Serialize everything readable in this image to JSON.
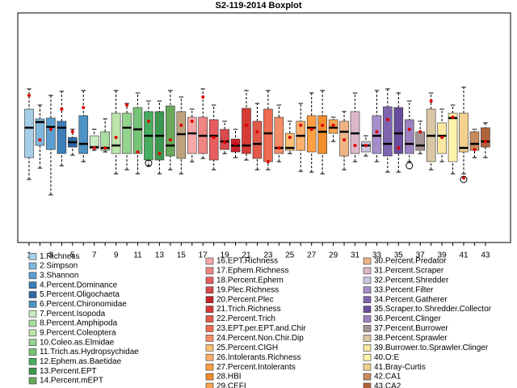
{
  "chart_data": {
    "type": "boxplot",
    "title": "S2-119-2014 Boxplot",
    "ylim": [
      0,
      284
    ],
    "categories": [
      "1",
      null,
      "3",
      null,
      "5",
      null,
      "7",
      null,
      "9",
      null,
      "11",
      null,
      "13",
      null,
      "15",
      null,
      "17",
      null,
      "19",
      null,
      "21",
      null,
      "23",
      null,
      "25",
      null,
      "27",
      null,
      "29",
      null,
      "31",
      null,
      "33",
      null,
      "35",
      null,
      "37",
      null,
      "39",
      null,
      "41",
      null,
      "43"
    ],
    "colors": [
      "#a6cde6",
      "#7fb7dc",
      "#5b9fd0",
      "#3c7fba",
      "#2f69a6",
      "#4d92c2",
      "#c9e9c1",
      "#a8dca0",
      "#bde4ab",
      "#93d38d",
      "#75c477",
      "#47ad5e",
      "#3b984f",
      "#6aa85a",
      "#bca37c",
      "#f5a8a8",
      "#f08484",
      "#e75d5e",
      "#d84a4c",
      "#c8232a",
      "#d53a35",
      "#e2594a",
      "#ef6d51",
      "#f58d66",
      "#fdc074",
      "#fdb06c",
      "#fd9f42",
      "#f08d2c",
      "#f8a352",
      "#efb486",
      "#dab8c8",
      "#cbc7e1",
      "#a58fcb",
      "#7f65b0",
      "#6a4d9c",
      "#9c82c0",
      "#a39393",
      "#d9c7a4",
      "#fbe7a1",
      "#fdf3ab",
      "#f2d08e",
      "#c98b5b",
      "#b1623b"
    ],
    "boxes": [
      {
        "low": 78,
        "q1": 105,
        "median": 142,
        "q3": 165,
        "high": 190,
        "mean": 182
      },
      {
        "low": 92,
        "q1": 120,
        "median": 149,
        "q3": 153,
        "high": 170,
        "mean": 127
      },
      {
        "low": 59,
        "q1": 115,
        "median": 143,
        "q3": 154,
        "high": 182,
        "mean": 140
      },
      {
        "low": 95,
        "q1": 110,
        "median": 142,
        "q3": 150,
        "high": 187,
        "mean": 165
      },
      {
        "low": 108,
        "q1": 118,
        "median": 124,
        "q3": 130,
        "high": 140,
        "mean": 137
      },
      {
        "low": 100,
        "q1": 110,
        "median": 122,
        "q3": 157,
        "high": 188,
        "mean": 167
      },
      {
        "low": 114,
        "q1": 116,
        "median": 118,
        "q3": 132,
        "high": 140,
        "mean": 117
      },
      {
        "low": 112,
        "q1": 114,
        "median": 117,
        "q3": 137,
        "high": 153,
        "mean": 117
      },
      {
        "low": 85,
        "q1": 110,
        "median": 120,
        "q3": 160,
        "high": 188,
        "mean": 130
      },
      {
        "low": 90,
        "q1": 110,
        "median": 142,
        "q3": 160,
        "high": 172,
        "mean": 170
      },
      {
        "low": 85,
        "q1": 110,
        "median": 140,
        "q3": 167,
        "high": 185,
        "mean": 112
      },
      {
        "low": 95,
        "q1": 102,
        "median": 132,
        "q3": 162,
        "high": 175,
        "mean": 150,
        "outliers": [
          98
        ]
      },
      {
        "low": 85,
        "q1": 102,
        "median": 132,
        "q3": 162,
        "high": 175,
        "mean": 110
      },
      {
        "low": 90,
        "q1": 107,
        "median": 120,
        "q3": 169,
        "high": 188,
        "mean": 127
      },
      {
        "low": 85,
        "q1": 104,
        "median": 134,
        "q3": 162,
        "high": 180,
        "mean": 145
      },
      {
        "low": 100,
        "q1": 110,
        "median": 135,
        "q3": 155,
        "high": 165,
        "mean": 150
      },
      {
        "low": 104,
        "q1": 110,
        "median": 132,
        "q3": 155,
        "high": 190,
        "mean": 180
      },
      {
        "low": 90,
        "q1": 102,
        "median": 132,
        "q3": 152,
        "high": 170,
        "mean": 130
      },
      {
        "low": 110,
        "q1": 115,
        "median": 125,
        "q3": 140,
        "high": 150,
        "mean": 124
      },
      {
        "low": 105,
        "q1": 112,
        "median": 120,
        "q3": 128,
        "high": 140,
        "mean": 122
      },
      {
        "low": 102,
        "q1": 110,
        "median": 120,
        "q3": 166,
        "high": 188,
        "mean": 145
      },
      {
        "low": 90,
        "q1": 104,
        "median": 122,
        "q3": 150,
        "high": 172,
        "mean": 137
      },
      {
        "low": 90,
        "q1": 100,
        "median": 135,
        "q3": 165,
        "high": 188,
        "mean": 100
      },
      {
        "low": 100,
        "q1": 110,
        "median": 117,
        "q3": 155,
        "high": 170,
        "mean": 117
      },
      {
        "low": 110,
        "q1": 114,
        "median": 117,
        "q3": 135,
        "high": 150,
        "mean": 130
      },
      {
        "low": 88,
        "q1": 114,
        "median": 132,
        "q3": 150,
        "high": 172,
        "mean": 145
      },
      {
        "low": 87,
        "q1": 112,
        "median": 142,
        "q3": 157,
        "high": 185,
        "mean": 140
      },
      {
        "low": 85,
        "q1": 110,
        "median": 137,
        "q3": 157,
        "high": 188,
        "mean": 145
      },
      {
        "low": 125,
        "q1": 135,
        "median": 142,
        "q3": 152,
        "high": 155,
        "mean": 145
      },
      {
        "low": 90,
        "q1": 107,
        "median": 137,
        "q3": 150,
        "high": 162,
        "mean": 127
      },
      {
        "low": 100,
        "q1": 110,
        "median": 135,
        "q3": 162,
        "high": 185,
        "mean": 120
      },
      {
        "low": 107,
        "q1": 112,
        "median": 120,
        "q3": 125,
        "high": 132,
        "mean": 120
      },
      {
        "low": 100,
        "q1": 110,
        "median": 132,
        "q3": 157,
        "high": 188,
        "mean": 137
      },
      {
        "low": 87,
        "q1": 107,
        "median": 122,
        "q3": 168,
        "high": 190,
        "mean": 152
      },
      {
        "low": 87,
        "q1": 110,
        "median": 135,
        "q3": 167,
        "high": 185,
        "mean": 117
      },
      {
        "low": 100,
        "q1": 110,
        "median": 122,
        "q3": 152,
        "high": 175,
        "mean": 140,
        "outliers": [
          95
        ]
      },
      {
        "low": 110,
        "q1": 114,
        "median": 120,
        "q3": 137,
        "high": 150,
        "mean": 137
      },
      {
        "low": 90,
        "q1": 100,
        "median": 132,
        "q3": 165,
        "high": 185,
        "mean": 175
      },
      {
        "low": 100,
        "q1": 110,
        "median": 132,
        "q3": 148,
        "high": 165,
        "mean": 130
      },
      {
        "low": 85,
        "q1": 100,
        "median": 154,
        "q3": 160,
        "high": 170,
        "mean": 155
      },
      {
        "low": 85,
        "q1": 112,
        "median": 117,
        "q3": 160,
        "high": 192,
        "mean": 80,
        "outliers": [
          78
        ]
      },
      {
        "low": 105,
        "q1": 114,
        "median": 122,
        "q3": 137,
        "high": 140,
        "mean": 115
      },
      {
        "low": 105,
        "q1": 118,
        "median": 125,
        "q3": 142,
        "high": 148,
        "mean": 125
      }
    ],
    "legend": [
      "1.Richness",
      "2.Simpson",
      "3.Shannon",
      "4.Percent.Dominance",
      "5.Percent.Oligochaeta",
      "6.Percent.Chironomidae",
      "7.Percent.Isopoda",
      "8.Percent.Amphipoda",
      "9.Percent.Coleoptera",
      "10.Coleo.as.Elmidae",
      "11.Trich.as.Hydropsychidae",
      "12.Ephem.as.Baetidae",
      "13.Percent.EPT",
      "14.Percent.mEPT",
      null,
      "16.EPT.Richness",
      "17.Ephem.Richness",
      "18.Percent.Ephem",
      "19.Plec.Richness",
      "20.Percent.Plec",
      "21.Trich.Richness",
      "22.Percent.Trich",
      "23.EPT.per.EPT.and.Chir",
      "24.Percent.Non.Chir.Dip",
      "25.Percent.CIGH",
      "26.Intolerants.Richness",
      "27.Percent.Intolerants",
      "28.HBI",
      "29.CEFI",
      "30.Percent.Predator",
      "31.Percent.Scraper",
      "32.Percent.Shredder",
      "33.Percent.Filter",
      "34.Percent.Gatherer",
      "35.Scraper.to.Shredder.Collector",
      "36.Percent.Clinger",
      "37.Percent.Burrower",
      "38.Percent.Sprawler",
      "39.Burrower.to.Sprawler.Clinger",
      "40.O:E",
      "41.Bray-Curtis",
      "42.CA1",
      "43.CA2"
    ],
    "mean_color": "#e00000"
  }
}
